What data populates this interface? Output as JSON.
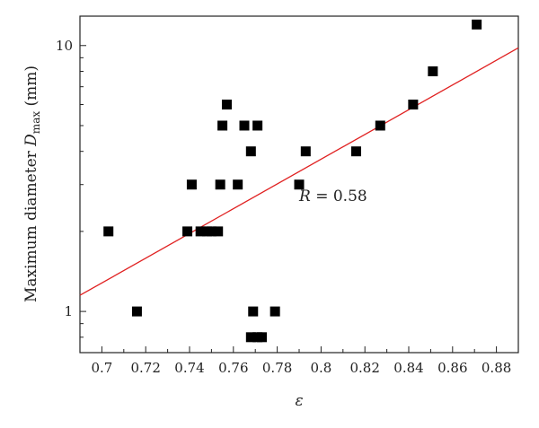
{
  "chart_data": {
    "type": "scatter",
    "xlabel": "ε",
    "ylabel": {
      "main": "Maximum diameter ",
      "symbol": "D",
      "subscript": "max",
      "unit": " (mm)"
    },
    "xlim": [
      0.69,
      0.89
    ],
    "ylim": [
      0.7,
      12.9
    ],
    "yscale": "log",
    "x_ticks": [
      0.7,
      0.72,
      0.74,
      0.76,
      0.78,
      0.8,
      0.82,
      0.84,
      0.86,
      0.88
    ],
    "x_tick_labels": [
      "0.7",
      "0.72",
      "0.74",
      "0.76",
      "0.78",
      "0.8",
      "0.82",
      "0.84",
      "0.86",
      "0.88"
    ],
    "y_tick_labels": [
      {
        "value": 1,
        "label": "1"
      },
      {
        "value": 10,
        "label": "10"
      }
    ],
    "grid": false,
    "marker": "square",
    "marker_color": "#000000",
    "points": [
      {
        "x": 0.703,
        "y": 2
      },
      {
        "x": 0.716,
        "y": 1
      },
      {
        "x": 0.739,
        "y": 2
      },
      {
        "x": 0.741,
        "y": 3
      },
      {
        "x": 0.745,
        "y": 2
      },
      {
        "x": 0.748,
        "y": 2
      },
      {
        "x": 0.75,
        "y": 2
      },
      {
        "x": 0.753,
        "y": 2
      },
      {
        "x": 0.754,
        "y": 3
      },
      {
        "x": 0.755,
        "y": 5
      },
      {
        "x": 0.757,
        "y": 6
      },
      {
        "x": 0.762,
        "y": 3
      },
      {
        "x": 0.765,
        "y": 5
      },
      {
        "x": 0.768,
        "y": 4
      },
      {
        "x": 0.768,
        "y": 0.8
      },
      {
        "x": 0.769,
        "y": 1
      },
      {
        "x": 0.771,
        "y": 5
      },
      {
        "x": 0.771,
        "y": 0.8
      },
      {
        "x": 0.773,
        "y": 0.8
      },
      {
        "x": 0.779,
        "y": 1
      },
      {
        "x": 0.79,
        "y": 3
      },
      {
        "x": 0.793,
        "y": 4
      },
      {
        "x": 0.816,
        "y": 4
      },
      {
        "x": 0.827,
        "y": 5
      },
      {
        "x": 0.842,
        "y": 6
      },
      {
        "x": 0.851,
        "y": 8
      },
      {
        "x": 0.871,
        "y": 12
      }
    ],
    "fit_line": {
      "color": "#e02020",
      "points": [
        [
          0.69,
          1.15
        ],
        [
          0.89,
          9.8
        ]
      ]
    },
    "annotation": {
      "symbol": "R",
      "text": " = 0.58",
      "x": 0.79,
      "y": 2.6
    }
  }
}
